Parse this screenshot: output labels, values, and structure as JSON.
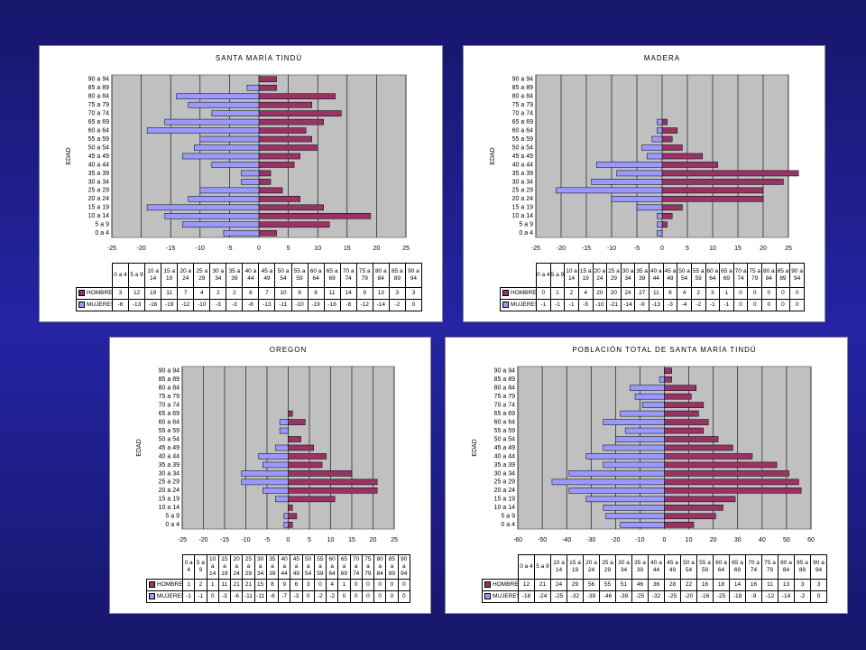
{
  "chart_data": [
    {
      "type": "pyramid",
      "title": "SANTA MARÍA TINDÚ",
      "y_label": "EDAD",
      "categories": [
        "0 a 4",
        "5 a 9",
        "10 a 14",
        "15 a 19",
        "20 a 24",
        "25 a 29",
        "30 a 34",
        "35 a 39",
        "40 a 44",
        "45 a 49",
        "50 a 54",
        "55 a 59",
        "60 a 64",
        "65 a 69",
        "70 a 74",
        "75 a 79",
        "80 a 84",
        "85 a 89",
        "90 a 94"
      ],
      "series": [
        {
          "name": "HOMBRES",
          "color": "#993366",
          "values": [
            3,
            12,
            19,
            11,
            7,
            4,
            2,
            2,
            6,
            7,
            10,
            9,
            8,
            11,
            14,
            9,
            13,
            3,
            3
          ]
        },
        {
          "name": "MUJERES",
          "color": "#9999ff",
          "values": [
            -6,
            -13,
            -16,
            -19,
            -12,
            -10,
            -3,
            -3,
            -8,
            -13,
            -11,
            -10,
            -19,
            -16,
            -8,
            -12,
            -14,
            -2,
            0
          ]
        }
      ],
      "xlim": [
        -25,
        25
      ],
      "xticks": [
        -25,
        -20,
        -15,
        -10,
        -5,
        0,
        5,
        10,
        15,
        20,
        25
      ],
      "grid": true
    },
    {
      "type": "pyramid",
      "title": "MADERA",
      "y_label": "EDAD",
      "categories": [
        "0 a 4",
        "5 a 9",
        "10 a 14",
        "15 a 19",
        "20 a 24",
        "25 a 29",
        "30 a 34",
        "35 a 39",
        "40 a 44",
        "45 a 49",
        "50 a 54",
        "55 a 59",
        "60 a 64",
        "65 a 69",
        "70 a 74",
        "75 a 79",
        "80 a 84",
        "85 a 89",
        "90 a 94"
      ],
      "series": [
        {
          "name": "HOMBRES",
          "color": "#993366",
          "values": [
            0,
            1,
            2,
            4,
            20,
            20,
            24,
            27,
            11,
            8,
            4,
            2,
            3,
            1,
            0,
            0,
            0,
            0,
            0
          ]
        },
        {
          "name": "MUJERES",
          "color": "#9999ff",
          "values": [
            -1,
            -1,
            -1,
            -5,
            -10,
            -21,
            -14,
            -9,
            -13,
            -3,
            -4,
            -2,
            -1,
            -1,
            0,
            0,
            0,
            0,
            0
          ]
        }
      ],
      "xlim": [
        -25,
        25
      ],
      "xticks": [
        -25,
        -20,
        -15,
        -10,
        -5,
        0,
        5,
        10,
        15,
        20,
        25
      ],
      "grid": true
    },
    {
      "type": "pyramid",
      "title": "OREGON",
      "y_label": "EDAD",
      "categories": [
        "0 a 4",
        "5 a 9",
        "10 a 14",
        "15 a 19",
        "20 a 24",
        "25 a 29",
        "30 a 34",
        "35 a 39",
        "40 a 44",
        "45 a 49",
        "50 a 54",
        "55 a 59",
        "60 a 64",
        "65 a 69",
        "70 a 74",
        "75 a 79",
        "80 a 84",
        "85 a 89",
        "90 a 94"
      ],
      "series": [
        {
          "name": "HOMBRES",
          "color": "#993366",
          "values": [
            1,
            2,
            1,
            11,
            21,
            21,
            15,
            8,
            9,
            6,
            3,
            0,
            4,
            1,
            0,
            0,
            0,
            0,
            0
          ]
        },
        {
          "name": "MUJERES",
          "color": "#9999ff",
          "values": [
            -1,
            -1,
            0,
            -3,
            -6,
            -11,
            -11,
            -6,
            -7,
            -3,
            0,
            -2,
            -2,
            0,
            0,
            0,
            0,
            0,
            0
          ]
        }
      ],
      "xlim": [
        -25,
        25
      ],
      "xticks": [
        -25,
        -20,
        -15,
        -10,
        -5,
        0,
        5,
        10,
        15,
        20,
        25
      ],
      "grid": true
    },
    {
      "type": "pyramid",
      "title": "POBLACIÓN TOTAL DE SANTA MARÍA TINDÚ",
      "y_label": "EDAD",
      "categories": [
        "0 a 4",
        "5 a 9",
        "10 a 14",
        "15 a 19",
        "20 a 24",
        "25 a 29",
        "30 a 34",
        "35 a 39",
        "40 a 44",
        "45 a 49",
        "50 a 54",
        "55 a 59",
        "60 a 64",
        "65 a 69",
        "70 a 74",
        "75 a 79",
        "80 a 84",
        "85 a 89",
        "90 a 94"
      ],
      "series": [
        {
          "name": "HOMBRES",
          "color": "#993366",
          "values": [
            12,
            21,
            24,
            29,
            56,
            55,
            51,
            46,
            36,
            28,
            22,
            16,
            18,
            14,
            16,
            11,
            13,
            3,
            3
          ]
        },
        {
          "name": "MUJERES",
          "color": "#9999ff",
          "values": [
            -18,
            -24,
            -25,
            -32,
            -39,
            -46,
            -39,
            -25,
            -32,
            -25,
            -20,
            -16,
            -25,
            -18,
            -9,
            -12,
            -14,
            -2,
            0
          ]
        }
      ],
      "xlim": [
        -60,
        60
      ],
      "xticks": [
        -60,
        -50,
        -40,
        -30,
        -20,
        -10,
        0,
        10,
        20,
        30,
        40,
        50,
        60
      ],
      "grid": true
    }
  ]
}
